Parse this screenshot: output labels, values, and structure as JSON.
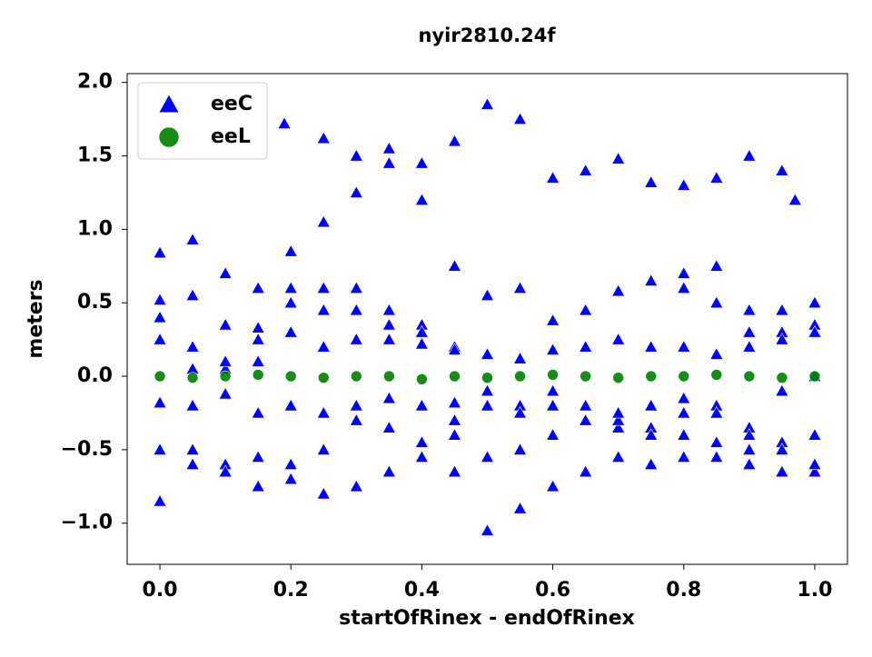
{
  "chart_data": {
    "type": "scatter",
    "title": "nyir2810.24f",
    "x_label": "startOfRinex - endOfRinex",
    "y_label": "meters",
    "xlim": [
      -0.05,
      1.05
    ],
    "ylim": [
      -1.28,
      2.06
    ],
    "xticks": [
      {
        "value": 0,
        "label": "0.0"
      },
      {
        "value": 0.2,
        "label": "0.2"
      },
      {
        "value": 0.4,
        "label": "0.4"
      },
      {
        "value": 0.6,
        "label": "0.6"
      },
      {
        "value": 0.8,
        "label": "0.8"
      },
      {
        "value": 1,
        "label": "1.0"
      }
    ],
    "yticks": [
      {
        "value": -1,
        "label": "−1.0"
      },
      {
        "value": -0.5,
        "label": "−0.5"
      },
      {
        "value": 0,
        "label": "0.0"
      },
      {
        "value": 0.5,
        "label": "0.5"
      },
      {
        "value": 1,
        "label": "1.0"
      },
      {
        "value": 1.5,
        "label": "1.5"
      },
      {
        "value": 2,
        "label": "2.0"
      }
    ],
    "legend": "upper left",
    "series": [
      {
        "name": "eeC",
        "color": "#0000ff",
        "marker": "triangle",
        "x": [
          0,
          0.05,
          0.1,
          0.15,
          0.2,
          0.25,
          0.3,
          0.35,
          0.4,
          0.45,
          0.5,
          0.55,
          0.6,
          0.65,
          0.7,
          0.75,
          0.8,
          0.85,
          0.9,
          0.95,
          1,
          0.19,
          0.25,
          0.3,
          0.35,
          0.4,
          0.45,
          0.8,
          0.85,
          0.9,
          0.95,
          0.97,
          0,
          0.05,
          0.1,
          0.15,
          0.2,
          0.25,
          0.3,
          0.35,
          0.4,
          0.45,
          0.5,
          0.55,
          0.6,
          0.65,
          0.7,
          0.75,
          0.8,
          0.85,
          0.9,
          0.95,
          1,
          0,
          0.05,
          0.1,
          0.15,
          0.2,
          0.25,
          0.3,
          0.35,
          0.4,
          0.45,
          0.5,
          0.55,
          0.6,
          0.65,
          0.7,
          0.75,
          0.8,
          0.85,
          0.9,
          0.95,
          1,
          0,
          0.05,
          0.1,
          0.15,
          0.2,
          0.25,
          0.3,
          0.35,
          0.4,
          0.45,
          0.5,
          0.55,
          0.6,
          0.65,
          0.7,
          0.75,
          0.8,
          0.85,
          0.9,
          0.95,
          1,
          0,
          0.05,
          0.1,
          0.15,
          0.2,
          0.25,
          0.3,
          0.35,
          0.4,
          0.45,
          0.5,
          0.55,
          0.6,
          0.65,
          0.7,
          0.75,
          0.8,
          0.85,
          0.9,
          0.95,
          1,
          0,
          0.05,
          0.1,
          0.15,
          0.2,
          0.25,
          0.3,
          0.35,
          0.4,
          0.45,
          0.5,
          0.55,
          0.6,
          0.65,
          0.7,
          0.75,
          0.8,
          0.85,
          0.9,
          0.95,
          1,
          0,
          0.05,
          0.1,
          0.15,
          0.2,
          0.25,
          0.3,
          0.35,
          0.4,
          0.45,
          0.5,
          0.55,
          0.6,
          0.65,
          0.7,
          0.75,
          0.8,
          0.85,
          0.9,
          0.95,
          1
        ],
        "values": [
          0.84,
          0.93,
          0.7,
          0.6,
          0.85,
          1.05,
          1.25,
          1.45,
          1.45,
          1.6,
          1.85,
          1.75,
          1.35,
          1.4,
          1.48,
          1.32,
          1.3,
          0.75,
          0.45,
          0.45,
          0.5,
          1.72,
          1.62,
          1.5,
          1.55,
          1.2,
          0.75,
          0.7,
          1.35,
          1.5,
          1.4,
          1.2,
          0.52,
          0.55,
          0.35,
          0.33,
          0.6,
          0.45,
          0.45,
          0.35,
          0.35,
          0.2,
          0.55,
          0.6,
          0.38,
          0.45,
          0.58,
          0.65,
          0.6,
          0.5,
          0.2,
          0.3,
          0.35,
          0.25,
          0.05,
          0.05,
          0.1,
          0.5,
          0.2,
          0.25,
          0.25,
          0.22,
          0.18,
          0.15,
          0.12,
          0.18,
          0.2,
          0.25,
          0.2,
          0.2,
          0.15,
          0.3,
          0.25,
          0.3,
          -0.18,
          -0.2,
          -0.12,
          -0.25,
          -0.2,
          -0.25,
          -0.2,
          -0.15,
          -0.2,
          -0.18,
          -0.1,
          -0.2,
          -0.1,
          -0.2,
          -0.35,
          -0.2,
          -0.15,
          -0.2,
          -0.35,
          -0.1,
          0,
          -0.5,
          -0.5,
          -0.6,
          -0.55,
          -0.6,
          -0.5,
          -0.3,
          -0.35,
          -0.45,
          -0.3,
          -0.2,
          -0.25,
          -0.2,
          -0.3,
          -0.3,
          -0.35,
          -0.4,
          -0.45,
          -0.5,
          -0.45,
          -0.4,
          -0.85,
          -0.6,
          -0.65,
          -0.75,
          -0.7,
          -0.8,
          -0.75,
          -0.65,
          -0.55,
          -0.65,
          -1.05,
          -0.9,
          -0.75,
          -0.65,
          -0.55,
          -0.6,
          -0.55,
          -0.55,
          -0.6,
          -0.65,
          -0.65,
          0.4,
          0.2,
          0.1,
          0.25,
          0.3,
          0.6,
          0.6,
          0.45,
          0.3,
          -0.4,
          -0.55,
          -0.5,
          -0.4,
          -0.3,
          -0.25,
          -0.4,
          -0.25,
          -0.25,
          -0.4,
          -0.5,
          -0.6
        ]
      },
      {
        "name": "eeL",
        "color": "#008000",
        "marker": "circle",
        "x": [
          0,
          0.05,
          0.1,
          0.15,
          0.2,
          0.25,
          0.3,
          0.35,
          0.4,
          0.45,
          0.5,
          0.55,
          0.6,
          0.65,
          0.7,
          0.75,
          0.8,
          0.85,
          0.9,
          0.95,
          1
        ],
        "values": [
          0,
          -0.01,
          0,
          0.01,
          0,
          -0.01,
          0,
          0,
          -0.02,
          0,
          -0.01,
          0,
          0.01,
          0,
          -0.01,
          0,
          0,
          0.01,
          0,
          -0.01,
          0
        ]
      }
    ]
  }
}
